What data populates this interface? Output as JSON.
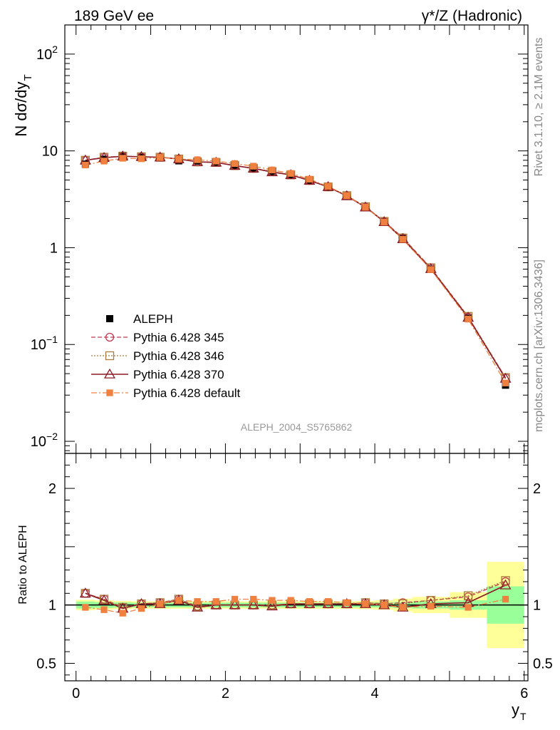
{
  "header": {
    "left_title": "189 GeV ee",
    "right_title": "γ*/Z (Hadronic)"
  },
  "side_texts": {
    "rivet": "Rivet 3.1.10, ≥ 2.1M events",
    "mcplots": "mcplots.cern.ch [arXiv:1306.3436]"
  },
  "analysis_label": "ALEPH_2004_S5765862",
  "colors": {
    "data": "#000000",
    "p345": "#c03a50",
    "p346": "#a87d3c",
    "p370": "#8c1a26",
    "pdefault": "#f08040",
    "band_inner": "#99ff99",
    "band_outer": "#ffff99"
  },
  "chart_data": [
    {
      "type": "scatter",
      "panel": "main",
      "ylabel": "N dσ/dy",
      "ylabel_sub": "T",
      "yscale": "log",
      "ylim": [
        0.0075,
        200
      ],
      "xlim": [
        -0.15,
        6.05
      ],
      "y_ticks": [
        {
          "base": "10",
          "exp": "-2",
          "value": 0.01
        },
        {
          "base": "10",
          "exp": "-1",
          "value": 0.1
        },
        {
          "base": "1",
          "exp": "",
          "value": 1
        },
        {
          "base": "10",
          "exp": "",
          "value": 10
        },
        {
          "base": "10",
          "exp": "2",
          "value": 100
        }
      ],
      "x": [
        0.125,
        0.375,
        0.625,
        0.875,
        1.125,
        1.375,
        1.625,
        1.875,
        2.125,
        2.375,
        2.625,
        2.875,
        3.125,
        3.375,
        3.625,
        3.875,
        4.125,
        4.375,
        4.75,
        5.25,
        5.75
      ],
      "x_edges": [
        0,
        0.25,
        0.5,
        0.75,
        1,
        1.25,
        1.5,
        1.75,
        2,
        2.25,
        2.5,
        2.75,
        3,
        3.25,
        3.5,
        3.75,
        4,
        4.25,
        4.5,
        5,
        5.5,
        6
      ],
      "legend": [
        {
          "key": "data",
          "label": "ALEPH"
        },
        {
          "key": "p345",
          "label": "Pythia 6.428 345"
        },
        {
          "key": "p346",
          "label": "Pythia 6.428 346"
        },
        {
          "key": "p370",
          "label": "Pythia 6.428 370"
        },
        {
          "key": "pdefault",
          "label": "Pythia 6.428 default"
        }
      ],
      "series": [
        {
          "key": "data",
          "name": "ALEPH",
          "values": [
            7.3,
            8.2,
            9.0,
            8.6,
            8.45,
            7.9,
            7.85,
            7.6,
            7.05,
            6.6,
            6.1,
            5.6,
            4.95,
            4.2,
            3.4,
            2.6,
            1.85,
            1.25,
            0.6,
            0.187,
            0.038
          ]
        },
        {
          "key": "p345",
          "name": "Pythia 6.428 345",
          "values": [
            8.0,
            8.6,
            8.8,
            8.7,
            8.6,
            8.25,
            7.7,
            7.6,
            7.05,
            6.6,
            6.1,
            5.65,
            4.95,
            4.25,
            3.45,
            2.65,
            1.87,
            1.27,
            0.62,
            0.193,
            0.0455
          ]
        },
        {
          "key": "p346",
          "name": "Pythia 6.428 346",
          "values": [
            8.0,
            8.6,
            8.8,
            8.7,
            8.6,
            8.25,
            7.7,
            7.6,
            7.05,
            6.6,
            6.1,
            5.65,
            4.95,
            4.25,
            3.45,
            2.65,
            1.87,
            1.26,
            0.62,
            0.195,
            0.0455
          ]
        },
        {
          "key": "p370",
          "name": "Pythia 6.428 370",
          "values": [
            8.0,
            8.5,
            8.8,
            8.7,
            8.6,
            8.25,
            7.7,
            7.6,
            7.05,
            6.6,
            6.05,
            5.65,
            4.95,
            4.25,
            3.42,
            2.62,
            1.85,
            1.23,
            0.605,
            0.19,
            0.0445
          ]
        },
        {
          "key": "pdefault",
          "name": "Pythia 6.428 default",
          "values": [
            7.15,
            7.85,
            8.4,
            8.3,
            8.55,
            8.25,
            8.1,
            7.85,
            7.4,
            6.95,
            6.35,
            5.85,
            5.1,
            4.3,
            3.45,
            2.62,
            1.84,
            1.22,
            0.595,
            0.183,
            0.04
          ]
        }
      ]
    },
    {
      "type": "line",
      "panel": "ratio",
      "ylabel": "Ratio to ALEPH",
      "xlabel": "y",
      "xlabel_sub": "T",
      "ylim": [
        0.35,
        2.3
      ],
      "xlim": [
        -0.15,
        6.05
      ],
      "y_ticks": [
        {
          "label": "0.5",
          "value": 0.5
        },
        {
          "label": "1",
          "value": 1
        },
        {
          "label": "2",
          "value": 2
        }
      ],
      "x_ticks": [
        {
          "label": "0",
          "value": 0
        },
        {
          "label": "2",
          "value": 2
        },
        {
          "label": "4",
          "value": 4
        },
        {
          "label": "6",
          "value": 6
        }
      ],
      "x": [
        0.125,
        0.375,
        0.625,
        0.875,
        1.125,
        1.375,
        1.625,
        1.875,
        2.125,
        2.375,
        2.625,
        2.875,
        3.125,
        3.375,
        3.625,
        3.875,
        4.125,
        4.375,
        4.75,
        5.25,
        5.75
      ],
      "x_edges": [
        0,
        0.25,
        0.5,
        0.75,
        1,
        1.25,
        1.5,
        1.75,
        2,
        2.25,
        2.5,
        2.75,
        3,
        3.25,
        3.5,
        3.75,
        4,
        4.25,
        4.5,
        5,
        5.5,
        6
      ],
      "band_inner_halfwidth": [
        0.03,
        0.025,
        0.022,
        0.02,
        0.02,
        0.02,
        0.02,
        0.02,
        0.02,
        0.02,
        0.02,
        0.02,
        0.02,
        0.02,
        0.02,
        0.02,
        0.022,
        0.025,
        0.03,
        0.04,
        0.16
      ],
      "band_outer_halfwidth": [
        0.045,
        0.04,
        0.035,
        0.032,
        0.032,
        0.032,
        0.032,
        0.032,
        0.032,
        0.032,
        0.032,
        0.032,
        0.032,
        0.032,
        0.032,
        0.035,
        0.04,
        0.055,
        0.07,
        0.11,
        0.37
      ],
      "series": [
        {
          "key": "p345",
          "values": [
            1.1,
            1.05,
            0.98,
            1.01,
            1.02,
            1.05,
            0.99,
            1.0,
            1.0,
            1.0,
            1.0,
            1.01,
            1.01,
            1.01,
            1.01,
            1.02,
            1.01,
            1.02,
            1.04,
            1.07,
            1.2
          ]
        },
        {
          "key": "p346",
          "values": [
            1.1,
            1.05,
            0.98,
            1.01,
            1.02,
            1.05,
            0.99,
            1.0,
            1.0,
            1.0,
            1.0,
            1.01,
            1.01,
            1.01,
            1.01,
            1.02,
            1.01,
            1.01,
            1.04,
            1.08,
            1.21
          ]
        },
        {
          "key": "p370",
          "values": [
            1.1,
            1.04,
            0.97,
            1.01,
            1.01,
            1.04,
            0.98,
            1.0,
            1.0,
            1.0,
            0.99,
            1.01,
            1.01,
            1.01,
            1.01,
            1.01,
            1.0,
            0.98,
            1.01,
            1.02,
            1.17
          ]
        },
        {
          "key": "pdefault",
          "values": [
            0.98,
            0.96,
            0.93,
            0.97,
            1.01,
            1.04,
            1.03,
            1.03,
            1.05,
            1.05,
            1.04,
            1.04,
            1.03,
            1.03,
            1.02,
            1.01,
            1.0,
            0.98,
            0.99,
            0.98,
            1.05
          ]
        }
      ]
    }
  ]
}
